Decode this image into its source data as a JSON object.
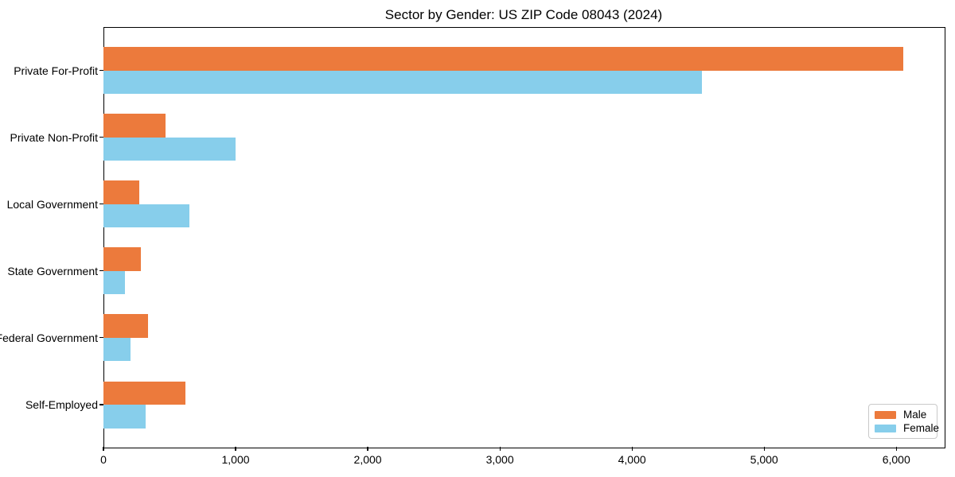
{
  "title": "Sector by Gender: US ZIP Code 08043 (2024)",
  "chart_data": {
    "type": "bar",
    "orientation": "horizontal",
    "title": "Sector by Gender: US ZIP Code 08043 (2024)",
    "categories": [
      "Private For-Profit",
      "Private Non-Profit",
      "Local Government",
      "State Government",
      "Federal Government",
      "Self-Employed"
    ],
    "series": [
      {
        "name": "Male",
        "color": "#ec7a3c",
        "values": [
          6050,
          470,
          270,
          285,
          335,
          620
        ]
      },
      {
        "name": "Female",
        "color": "#87ceeb",
        "values": [
          4530,
          1000,
          650,
          160,
          205,
          320
        ]
      }
    ],
    "xlabel": "",
    "ylabel": "",
    "xlim": [
      0,
      6360
    ],
    "x_tick_values": [
      0,
      1000,
      2000,
      3000,
      4000,
      5000,
      6000
    ],
    "x_tick_labels": [
      "0",
      "1,000",
      "2,000",
      "3,000",
      "4,000",
      "5,000",
      "6,000"
    ],
    "grid": false,
    "legend_position": "lower right",
    "axis_color": "#000000",
    "background_color": "#ffffff"
  }
}
